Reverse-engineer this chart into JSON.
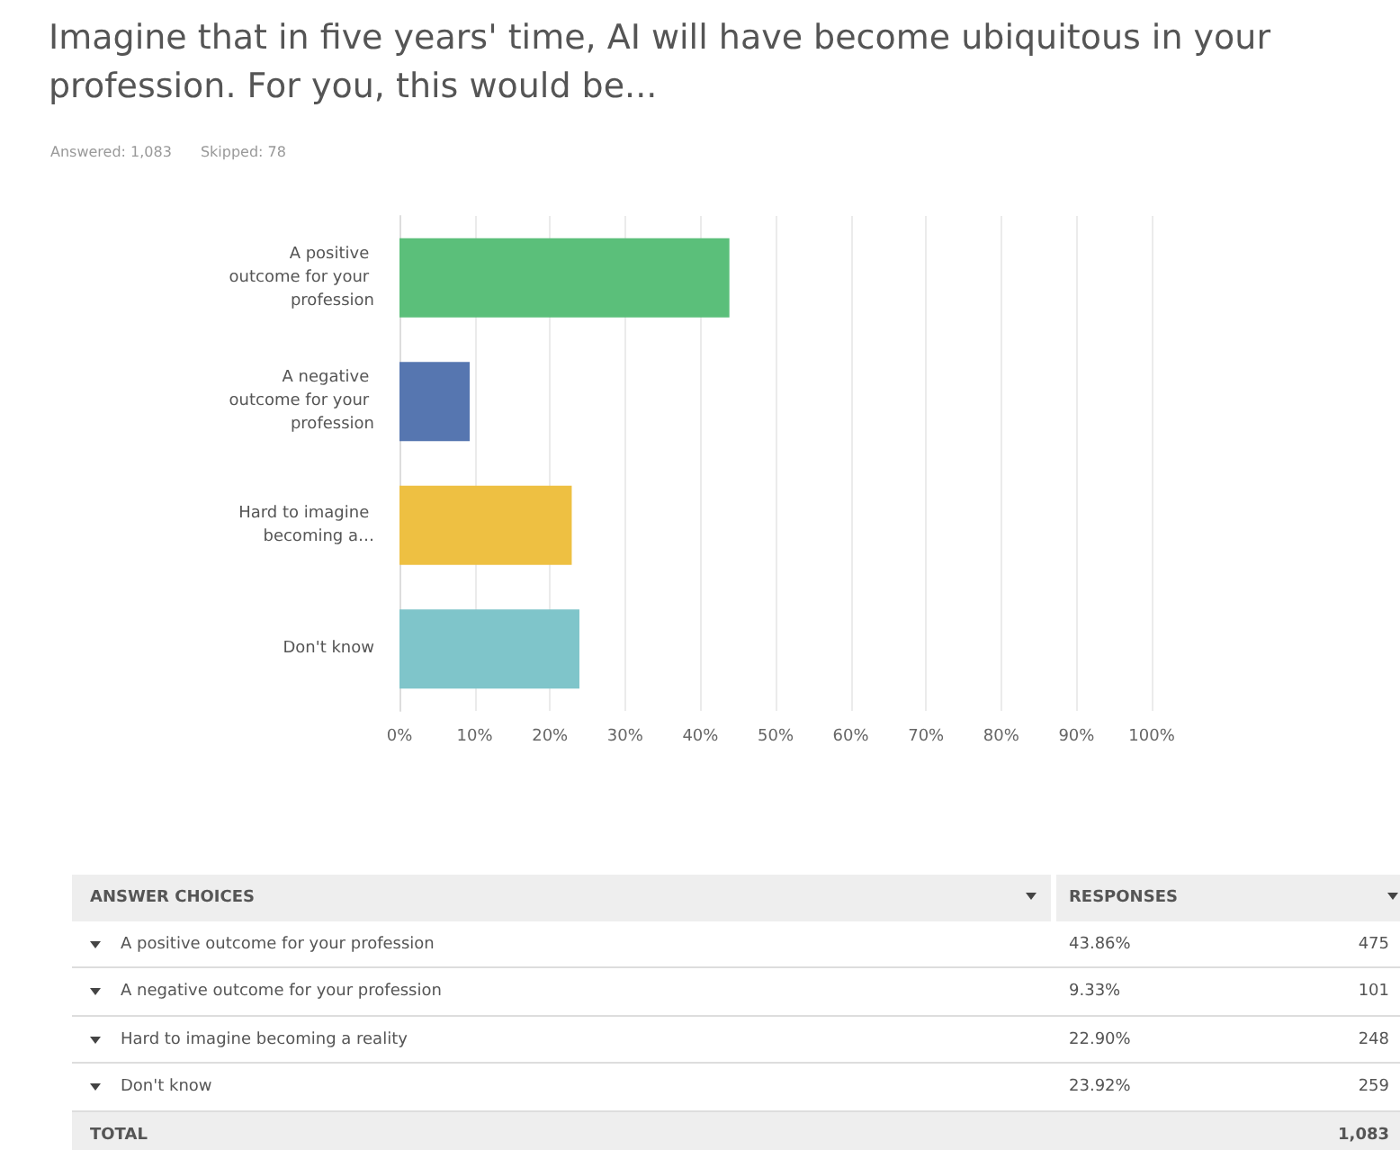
{
  "chart_data": {
    "type": "bar",
    "orientation": "horizontal",
    "title": "Imagine that in five years' time, AI will have become ubiquitous in your profession. For you, this would be...",
    "categories": [
      "A positive outcome for your profession",
      "A negative outcome for your profession",
      "Hard to imagine becoming a…",
      "Don't know"
    ],
    "values": [
      43.86,
      9.33,
      22.9,
      23.92
    ],
    "colors": [
      "#5bbf7a",
      "#5676b0",
      "#eec042",
      "#7fc5ca"
    ],
    "xlim": [
      0,
      100
    ],
    "xticks": [
      {
        "value": 0,
        "label": "0%"
      },
      {
        "value": 10,
        "label": "10%"
      },
      {
        "value": 20,
        "label": "20%"
      },
      {
        "value": 30,
        "label": "30%"
      },
      {
        "value": 40,
        "label": "40%"
      },
      {
        "value": 50,
        "label": "50%"
      },
      {
        "value": 60,
        "label": "60%"
      },
      {
        "value": 70,
        "label": "70%"
      },
      {
        "value": 80,
        "label": "80%"
      },
      {
        "value": 90,
        "label": "90%"
      },
      {
        "value": 100,
        "label": "100%"
      }
    ],
    "grid": "x",
    "annotations": [
      "Answered: 1,083",
      "Skipped: 78",
      "ANSWER CHOICES",
      "RESPONSES",
      "A positive outcome for your profession",
      "43.86%",
      "475",
      "A negative outcome for your profession",
      "9.33%",
      "101",
      "Hard to imagine becoming a reality",
      "22.90%",
      "248",
      "Don't know",
      "23.92%",
      "259",
      "TOTAL",
      "1,083"
    ]
  }
}
